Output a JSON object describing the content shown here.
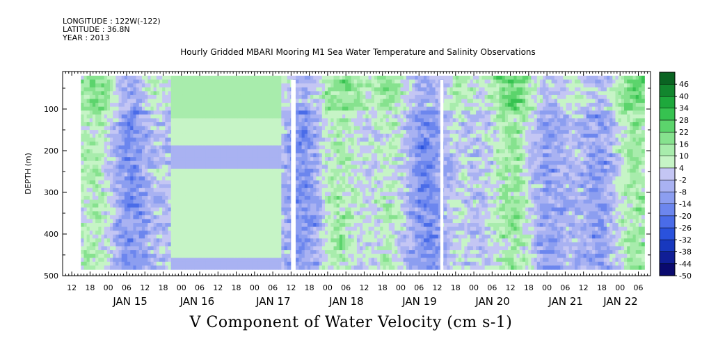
{
  "header": {
    "longitude": "LONGITUDE : 122W(-122)",
    "latitude": "LATITUDE : 36.8N",
    "year": "YEAR : 2013"
  },
  "title": "Hourly Gridded MBARI Mooring M1 Sea Water Temperature and Salinity Observations",
  "bottom_title": "V Component of Water Velocity (cm s-1)",
  "chart_data": {
    "type": "heatmap",
    "title": "Hourly Gridded MBARI Mooring M1 Sea Water Temperature and Salinity Observations",
    "xlabel": "",
    "ylabel": "DEPTH (m)",
    "colorbar_label": "V Component of Water Velocity (cm s-1)",
    "x_range": [
      "2013-01-14T09:00",
      "2013-01-22T10:00"
    ],
    "data_x_range": [
      "2013-01-14T15:00",
      "2013-01-22T08:00"
    ],
    "y_range": [
      500,
      10
    ],
    "y_ticks": [
      100,
      200,
      300,
      400,
      500
    ],
    "y_tick_labels": [
      "100",
      "200",
      "300",
      "400",
      "500"
    ],
    "x_hour_ticks": [
      "12",
      "18",
      "00",
      "06",
      "12",
      "18",
      "00",
      "06",
      "12",
      "18",
      "00",
      "06",
      "12",
      "18",
      "00",
      "06",
      "12",
      "18",
      "00",
      "06",
      "12",
      "18",
      "00",
      "06",
      "12",
      "18",
      "00",
      "06",
      "12",
      "18",
      "00",
      "06",
      "12",
      "18",
      "00",
      "06"
    ],
    "x_day_labels": [
      {
        "label": "JAN 15",
        "hour": 33
      },
      {
        "label": "JAN 16",
        "hour": 55
      },
      {
        "label": "JAN 17",
        "hour": 80
      },
      {
        "label": "JAN 18",
        "hour": 104
      },
      {
        "label": "JAN 19",
        "hour": 128
      },
      {
        "label": "JAN 20",
        "hour": 152
      },
      {
        "label": "JAN 21",
        "hour": 176
      },
      {
        "label": "JAN 22",
        "hour": 194
      }
    ],
    "colorbar_levels": [
      -50,
      -44,
      -38,
      -32,
      -26,
      -20,
      -14,
      -8,
      -2,
      4,
      10,
      16,
      22,
      28,
      34,
      40,
      46
    ],
    "colorbar_level_labels": [
      "-50",
      "-44",
      "-38",
      "-32",
      "-26",
      "-20",
      "-14",
      "-8",
      "-2",
      "4",
      "10",
      "16",
      "22",
      "28",
      "34",
      "40",
      "46"
    ],
    "colorbar_colors": [
      "#0a0a6e",
      "#101e96",
      "#1838be",
      "#2a52dc",
      "#4a6ce8",
      "#6c86ee",
      "#8c9ef0",
      "#a9b2f2",
      "#c4c6f4",
      "#c6f4c6",
      "#a8ecac",
      "#86e28e",
      "#5cd46c",
      "#36c250",
      "#1ea83c",
      "#12862e",
      "#0a6422"
    ],
    "gaps": [
      {
        "hour_start": 84,
        "hour_end": 85
      },
      {
        "hour_start": 133,
        "hour_end": 133.5
      }
    ]
  }
}
